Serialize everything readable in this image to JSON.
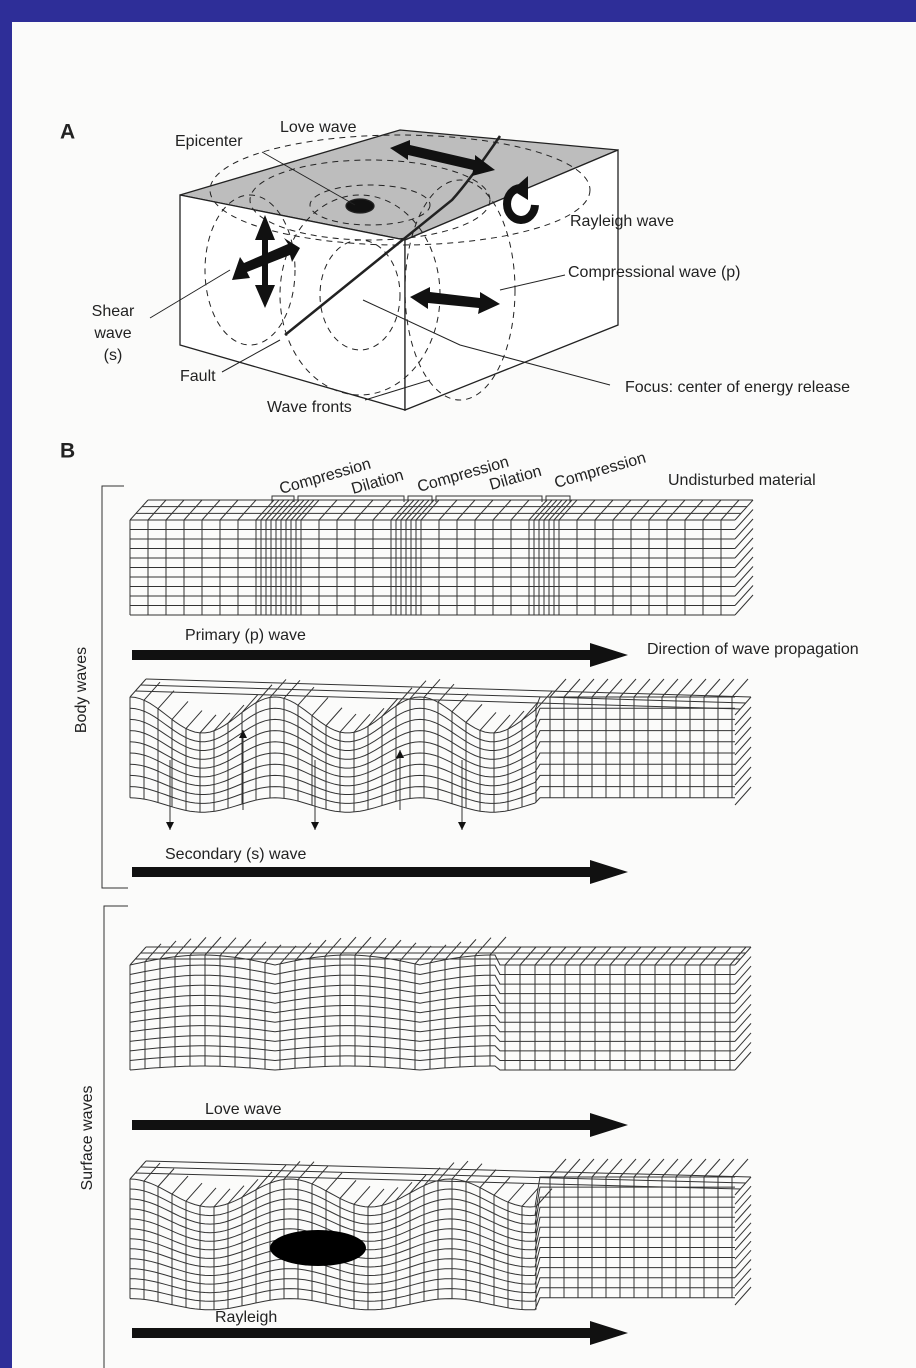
{
  "panel_a": {
    "label": "A",
    "epicenter": "Epicenter",
    "love_wave": "Love wave",
    "rayleigh_wave": "Rayleigh wave",
    "compressional_wave": "Compressional wave (p)",
    "shear_wave": [
      "Shear",
      "wave",
      "(s)"
    ],
    "fault": "Fault",
    "wave_fronts": "Wave fronts",
    "focus": "Focus: center of energy release"
  },
  "panel_b": {
    "label": "B",
    "zones": [
      "Compression",
      "Dilation",
      "Compression",
      "Dilation",
      "Compression"
    ],
    "undisturbed": "Undisturbed material",
    "primary": "Primary (p) wave",
    "direction": "Direction of wave propagation",
    "secondary": "Secondary (s) wave",
    "love": "Love wave",
    "rayleigh": "Rayleigh",
    "body_waves": "Body waves",
    "surface_waves": "Surface waves"
  }
}
